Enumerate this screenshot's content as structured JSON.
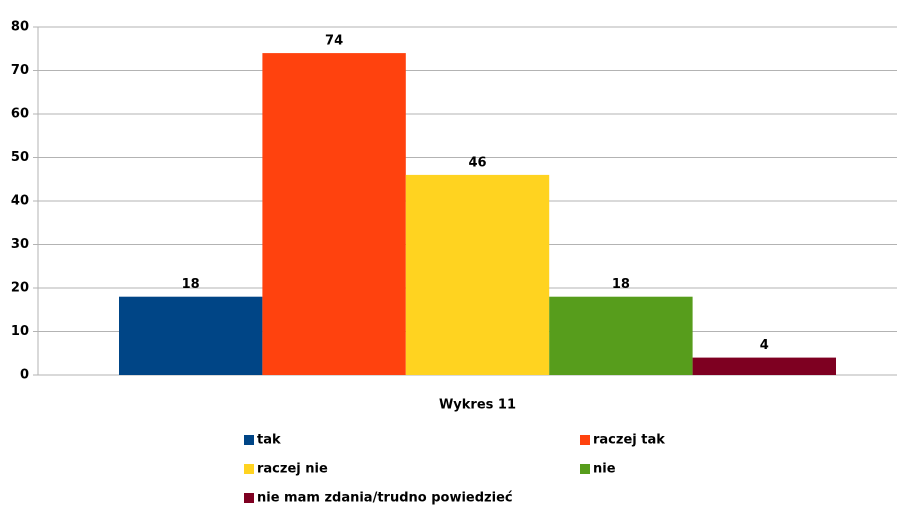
{
  "chart_data": {
    "type": "bar",
    "categories": [
      "Wykres 11"
    ],
    "series": [
      {
        "name": "tak",
        "color": "#004586",
        "values": [
          18
        ]
      },
      {
        "name": "raczej tak",
        "color": "#ff420e",
        "values": [
          74
        ]
      },
      {
        "name": "raczej nie",
        "color": "#ffd320",
        "values": [
          46
        ]
      },
      {
        "name": "nie",
        "color": "#579d1c",
        "values": [
          18
        ]
      },
      {
        "name": "nie mam zdania/trudno powiedzieć",
        "color": "#7e0021",
        "values": [
          4
        ]
      }
    ],
    "ylim": [
      0,
      80
    ],
    "yticks": [
      0,
      10,
      20,
      30,
      40,
      50,
      60,
      70,
      80
    ],
    "grid": true,
    "legend": "bottom"
  }
}
